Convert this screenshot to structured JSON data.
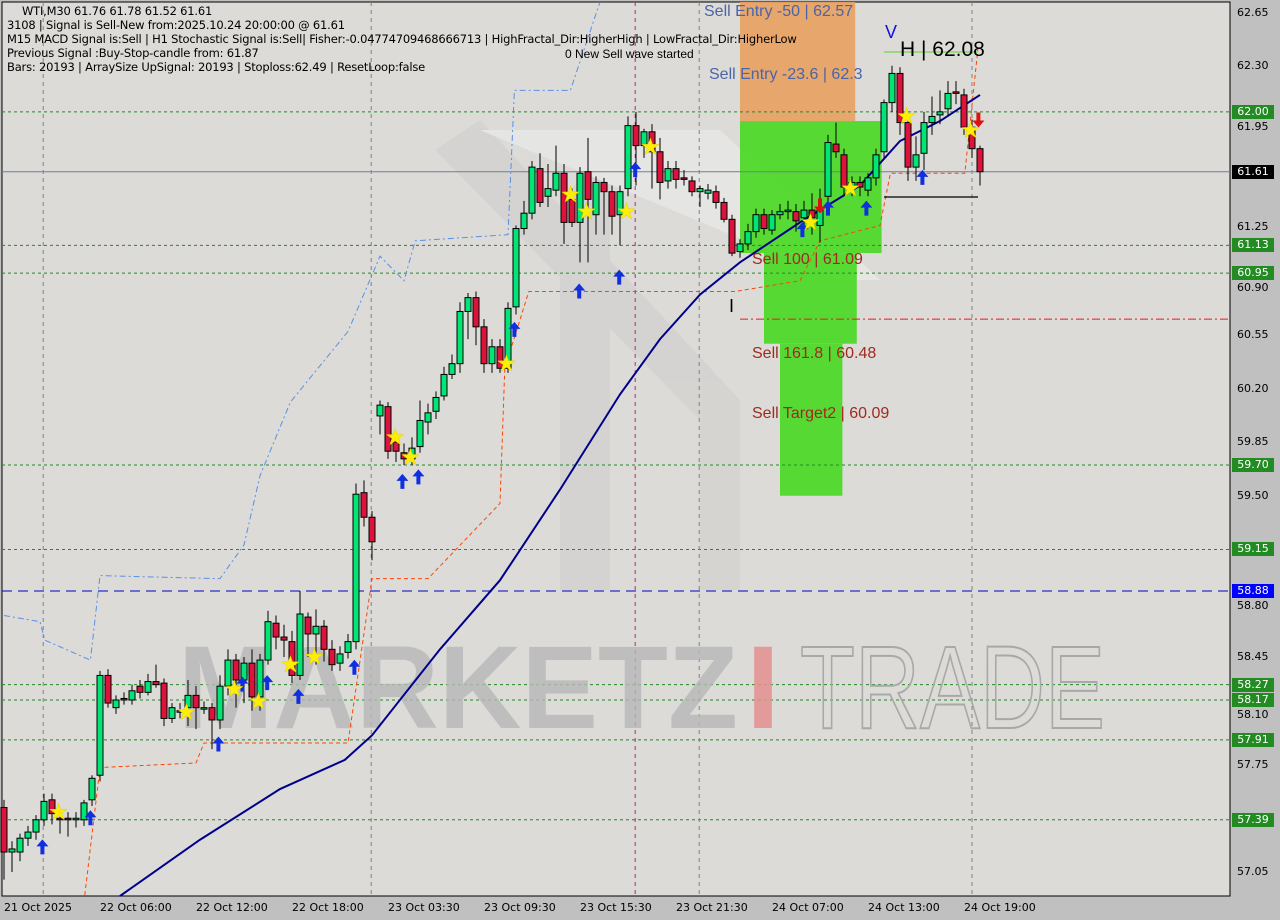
{
  "header": {
    "symbol_line": "WTI,M30  61.76 61.78 61.52 61.61",
    "signal_line": "3108 | Signal is Sell-New from:2025.10.24 20:00:00 @ 61.61",
    "macd_line": "M15 MACD Signal is:Sell | H1 Stochastic Signal is:Sell| Fisher:-0.04774709468666713 | HighFractal_Dir:HigherHigh | LowFractal_Dir:HigherLow",
    "previous_line": "Previous Signal :Buy-Stop-candle from: 61.87",
    "bars_line": "Bars: 20193 | ArraySize UpSignal: 20193 | Stoploss:62.49 | ResetLoop:false"
  },
  "annotations": {
    "wave": "0 New Sell wave started",
    "sell_entry_50": "Sell Entry -50 | 62.57",
    "sell_entry_236": "Sell Entry -23.6 | 62.3",
    "high": "H | 62.08",
    "v_mark": "V",
    "i_mark": "I",
    "sell_100": "Sell 100 | 61.09",
    "sell_1618": "Sell 161.8 | 60.48",
    "sell_target2": "Sell Target2 | 60.09"
  },
  "watermark": {
    "part1": "MARKETZ",
    "part2": "I",
    "part3": "TRADE"
  },
  "colors": {
    "background": "#d8d8d8",
    "bull": "#00e676",
    "bear": "#dc143c",
    "ma": "#00008b",
    "level_green": "#228b22",
    "current_price": "#000000",
    "blue_level": "#0000ff",
    "zone_orange": "#e8a060",
    "zone_green": "#4fd92a"
  },
  "price_axis": {
    "ticks": [
      "62.65",
      "62.30",
      "61.95",
      "61.25",
      "60.90",
      "60.55",
      "60.20",
      "59.85",
      "59.50",
      "58.80",
      "58.45",
      "58.10",
      "57.75",
      "57.05"
    ],
    "badges": [
      {
        "value": "62.00",
        "type": "green"
      },
      {
        "value": "61.61",
        "type": "current"
      },
      {
        "value": "61.13",
        "type": "green"
      },
      {
        "value": "60.95",
        "type": "green"
      },
      {
        "value": "59.70",
        "type": "green"
      },
      {
        "value": "59.15",
        "type": "green"
      },
      {
        "value": "58.88",
        "type": "blue"
      },
      {
        "value": "58.27",
        "type": "green"
      },
      {
        "value": "58.17",
        "type": "green"
      },
      {
        "value": "57.91",
        "type": "green"
      },
      {
        "value": "57.39",
        "type": "green"
      }
    ]
  },
  "time_axis": [
    "21 Oct 2025",
    "22 Oct 06:00",
    "22 Oct 12:00",
    "22 Oct 18:00",
    "23 Oct 03:30",
    "23 Oct 09:30",
    "23 Oct 15:30",
    "23 Oct 21:30",
    "24 Oct 07:00",
    "24 Oct 13:00",
    "24 Oct 19:00"
  ],
  "chart_data": {
    "type": "candlestick",
    "symbol": "WTI",
    "timeframe": "M30",
    "ylim": [
      56.9,
      62.72
    ],
    "candles": [
      [
        57.47,
        57.52,
        57.0,
        57.18
      ],
      [
        57.18,
        57.25,
        57.05,
        57.2
      ],
      [
        57.18,
        57.3,
        57.12,
        57.27
      ],
      [
        57.27,
        57.35,
        57.22,
        57.31
      ],
      [
        57.31,
        57.42,
        57.26,
        57.39
      ],
      [
        57.39,
        57.56,
        57.35,
        57.51
      ],
      [
        57.52,
        57.56,
        57.36,
        57.43
      ],
      [
        57.4,
        57.45,
        57.3,
        57.39
      ],
      [
        57.4,
        57.44,
        57.28,
        57.39
      ],
      [
        57.39,
        57.44,
        57.34,
        57.4
      ],
      [
        57.39,
        57.52,
        57.35,
        57.5
      ],
      [
        57.52,
        57.68,
        57.48,
        57.66
      ],
      [
        57.68,
        58.36,
        57.64,
        58.33
      ],
      [
        58.33,
        58.37,
        58.12,
        58.15
      ],
      [
        58.12,
        58.2,
        58.08,
        58.17
      ],
      [
        58.18,
        58.22,
        58.14,
        58.17
      ],
      [
        58.17,
        58.27,
        58.14,
        58.23
      ],
      [
        58.26,
        58.3,
        58.18,
        58.22
      ],
      [
        58.22,
        58.34,
        58.2,
        58.29
      ],
      [
        58.29,
        58.4,
        58.25,
        58.27
      ],
      [
        58.28,
        58.31,
        58.0,
        58.05
      ],
      [
        58.05,
        58.15,
        58.02,
        58.12
      ],
      [
        58.1,
        58.15,
        58.05,
        58.1
      ],
      [
        58.12,
        58.3,
        58.0,
        58.2
      ],
      [
        58.2,
        58.26,
        57.98,
        58.12
      ],
      [
        58.12,
        58.16,
        58.08,
        58.12
      ],
      [
        58.12,
        58.15,
        57.85,
        58.04
      ],
      [
        58.04,
        58.33,
        57.98,
        58.26
      ],
      [
        58.26,
        58.5,
        58.2,
        58.43
      ],
      [
        58.43,
        58.47,
        58.12,
        58.3
      ],
      [
        58.3,
        58.45,
        58.15,
        58.41
      ],
      [
        58.41,
        58.5,
        58.1,
        58.19
      ],
      [
        58.19,
        58.47,
        58.1,
        58.43
      ],
      [
        58.43,
        58.75,
        58.4,
        58.68
      ],
      [
        58.67,
        58.72,
        58.5,
        58.58
      ],
      [
        58.58,
        58.66,
        58.45,
        58.56
      ],
      [
        58.55,
        58.62,
        58.28,
        58.33
      ],
      [
        58.33,
        58.88,
        58.3,
        58.73
      ],
      [
        58.71,
        58.74,
        58.45,
        58.6
      ],
      [
        58.6,
        58.76,
        58.4,
        58.65
      ],
      [
        58.65,
        58.69,
        58.42,
        58.5
      ],
      [
        58.5,
        58.56,
        58.36,
        58.4
      ],
      [
        58.41,
        58.52,
        58.36,
        58.47
      ],
      [
        58.48,
        58.6,
        58.44,
        58.55
      ],
      [
        58.55,
        59.58,
        58.5,
        59.51
      ],
      [
        59.52,
        59.6,
        59.3,
        59.36
      ],
      [
        59.36,
        59.4,
        59.08,
        59.2
      ],
      [
        60.02,
        60.12,
        59.9,
        60.09
      ],
      [
        60.08,
        60.11,
        59.74,
        59.79
      ],
      [
        59.85,
        59.9,
        59.72,
        59.79
      ],
      [
        59.78,
        59.84,
        59.7,
        59.74
      ],
      [
        59.74,
        59.88,
        59.7,
        59.81
      ],
      [
        59.82,
        60.12,
        59.78,
        59.99
      ],
      [
        59.98,
        60.1,
        59.9,
        60.04
      ],
      [
        60.05,
        60.18,
        60.0,
        60.14
      ],
      [
        60.15,
        60.34,
        60.12,
        60.29
      ],
      [
        60.29,
        60.42,
        60.26,
        60.36
      ],
      [
        60.36,
        60.76,
        60.3,
        60.7
      ],
      [
        60.7,
        60.82,
        60.52,
        60.79
      ],
      [
        60.79,
        60.83,
        60.48,
        60.6
      ],
      [
        60.6,
        60.65,
        60.3,
        60.36
      ],
      [
        60.36,
        60.52,
        60.3,
        60.47
      ],
      [
        60.47,
        60.52,
        60.3,
        60.33
      ],
      [
        60.33,
        60.76,
        60.3,
        60.72
      ],
      [
        60.73,
        61.26,
        60.68,
        61.24
      ],
      [
        61.24,
        61.42,
        61.2,
        61.34
      ],
      [
        61.34,
        61.68,
        61.3,
        61.64
      ],
      [
        61.63,
        61.73,
        61.38,
        61.41
      ],
      [
        61.45,
        61.66,
        61.38,
        61.5
      ],
      [
        61.49,
        61.78,
        61.45,
        61.6
      ],
      [
        61.6,
        61.66,
        61.14,
        61.28
      ],
      [
        61.43,
        61.5,
        61.25,
        61.28
      ],
      [
        61.28,
        61.64,
        61.02,
        61.6
      ],
      [
        61.61,
        61.83,
        61.02,
        61.43
      ],
      [
        61.33,
        61.58,
        61.2,
        61.54
      ],
      [
        61.54,
        61.57,
        61.2,
        61.48
      ],
      [
        61.48,
        61.52,
        61.2,
        61.32
      ],
      [
        61.33,
        61.52,
        61.13,
        61.48
      ],
      [
        61.5,
        61.97,
        61.45,
        61.91
      ],
      [
        61.91,
        62.0,
        61.52,
        61.78
      ],
      [
        61.78,
        61.89,
        61.7,
        61.87
      ],
      [
        61.87,
        61.92,
        61.5,
        61.74
      ],
      [
        61.74,
        61.83,
        61.43,
        61.54
      ],
      [
        61.55,
        61.68,
        61.5,
        61.63
      ],
      [
        61.63,
        61.68,
        61.5,
        61.56
      ],
      [
        61.57,
        61.62,
        61.52,
        61.56
      ],
      [
        61.55,
        61.58,
        61.45,
        61.48
      ],
      [
        61.48,
        61.52,
        61.38,
        61.5
      ],
      [
        61.47,
        61.53,
        61.43,
        61.49
      ],
      [
        61.48,
        61.52,
        61.37,
        61.41
      ],
      [
        61.41,
        61.44,
        61.28,
        61.3
      ],
      [
        61.3,
        61.33,
        61.06,
        61.08
      ],
      [
        61.09,
        61.17,
        61.05,
        61.14
      ],
      [
        61.14,
        61.27,
        61.1,
        61.22
      ],
      [
        61.22,
        61.37,
        61.18,
        61.33
      ],
      [
        61.33,
        61.37,
        61.2,
        61.24
      ],
      [
        61.23,
        61.36,
        61.2,
        61.33
      ],
      [
        61.33,
        61.4,
        61.3,
        61.35
      ],
      [
        61.35,
        61.42,
        61.3,
        61.36
      ],
      [
        61.35,
        61.4,
        61.22,
        61.29
      ],
      [
        61.31,
        61.42,
        61.24,
        61.36
      ],
      [
        61.36,
        61.47,
        61.2,
        61.31
      ],
      [
        61.26,
        61.5,
        61.15,
        61.36
      ],
      [
        61.45,
        61.85,
        61.4,
        61.8
      ],
      [
        61.79,
        61.93,
        61.7,
        61.74
      ],
      [
        61.72,
        61.76,
        61.45,
        61.51
      ],
      [
        61.51,
        61.58,
        61.45,
        61.54
      ],
      [
        61.54,
        61.58,
        61.45,
        61.51
      ],
      [
        61.49,
        61.6,
        61.45,
        61.57
      ],
      [
        61.57,
        61.76,
        61.52,
        61.72
      ],
      [
        61.74,
        62.08,
        61.7,
        62.06
      ],
      [
        62.06,
        62.3,
        62.0,
        62.25
      ],
      [
        62.25,
        62.29,
        61.85,
        61.93
      ],
      [
        61.93,
        61.97,
        61.55,
        61.64
      ],
      [
        61.64,
        61.84,
        61.55,
        61.72
      ],
      [
        61.73,
        62.0,
        61.62,
        61.93
      ],
      [
        61.93,
        62.1,
        61.85,
        61.97
      ],
      [
        61.98,
        62.14,
        61.92,
        62.0
      ],
      [
        62.02,
        62.2,
        61.98,
        62.12
      ],
      [
        62.13,
        62.2,
        62.05,
        62.12
      ],
      [
        62.11,
        62.15,
        61.85,
        61.9
      ],
      [
        61.9,
        61.95,
        61.7,
        61.76
      ],
      [
        61.76,
        61.78,
        61.52,
        61.61
      ]
    ],
    "moving_average": [
      [
        14.5,
        56.89
      ],
      [
        24.5,
        57.26
      ],
      [
        34.5,
        57.59
      ],
      [
        42.6,
        57.78
      ],
      [
        46,
        57.94
      ],
      [
        54.5,
        58.5
      ],
      [
        62,
        58.95
      ],
      [
        69.5,
        59.54
      ],
      [
        77,
        60.16
      ],
      [
        82,
        60.52
      ],
      [
        87,
        60.81
      ],
      [
        92,
        61.02
      ],
      [
        99.5,
        61.28
      ],
      [
        107,
        61.52
      ],
      [
        112,
        61.81
      ],
      [
        117,
        61.94
      ],
      [
        122,
        62.11
      ]
    ],
    "stop_line": [
      [
        10.1,
        56.9
      ],
      [
        12,
        57.73
      ],
      [
        24,
        57.76
      ],
      [
        25,
        57.89
      ],
      [
        43,
        57.89
      ],
      [
        46,
        58.96
      ],
      [
        53,
        58.96
      ],
      [
        62,
        59.45
      ],
      [
        62.6,
        60.33
      ],
      [
        65.6,
        60.83
      ],
      [
        91.4,
        60.83
      ],
      [
        99.5,
        60.9
      ],
      [
        102,
        61.16
      ],
      [
        109.5,
        61.26
      ],
      [
        110.8,
        61.6
      ],
      [
        120.1,
        61.6
      ],
      [
        121.8,
        62.44
      ]
    ],
    "upper_band": [
      [
        0,
        58.72
      ],
      [
        4.5,
        58.68
      ],
      [
        5.1,
        58.56
      ],
      [
        10.8,
        58.43
      ],
      [
        12,
        58.98
      ],
      [
        27,
        58.96
      ],
      [
        30,
        59.18
      ],
      [
        32,
        59.63
      ],
      [
        35.8,
        60.11
      ],
      [
        43,
        60.57
      ],
      [
        47,
        61.06
      ],
      [
        50,
        60.9
      ],
      [
        51.4,
        61.16
      ],
      [
        63,
        61.2
      ],
      [
        63.8,
        62.14
      ],
      [
        70.8,
        62.14
      ],
      [
        74.5,
        62.72
      ]
    ],
    "levels": [
      {
        "price": 62.0,
        "style": "green-dashed"
      },
      {
        "price": 61.13,
        "style": "green-dashed"
      },
      {
        "price": 60.95,
        "style": "green-dashed"
      },
      {
        "price": 59.7,
        "style": "green-dashed"
      },
      {
        "price": 59.15,
        "style": "green-dashed"
      },
      {
        "price": 58.27,
        "style": "green-dashed"
      },
      {
        "price": 58.17,
        "style": "green-dashed"
      },
      {
        "price": 57.91,
        "style": "green-dashed"
      },
      {
        "price": 57.39,
        "style": "green-dashed"
      },
      {
        "price": 58.88,
        "style": "blue-dashed"
      },
      {
        "price": 61.61,
        "style": "current"
      },
      {
        "price": 60.65,
        "style": "red-dashdot",
        "from": 92
      }
    ],
    "zones": [
      {
        "from": 92,
        "to": 106.4,
        "top": 62.72,
        "bottom": 61.94,
        "color": "orange"
      },
      {
        "from": 92,
        "to": 109.7,
        "top": 61.94,
        "bottom": 61.08,
        "color": "green"
      },
      {
        "from": 95,
        "to": 106.6,
        "top": 61.08,
        "bottom": 60.49,
        "color": "green"
      },
      {
        "from": 97,
        "to": 104.8,
        "top": 60.49,
        "bottom": 59.5,
        "color": "green"
      }
    ],
    "buy_arrows": [
      [
        4.8,
        57.21
      ],
      [
        10.8,
        57.4
      ],
      [
        26.8,
        57.88
      ],
      [
        29.8,
        58.27
      ],
      [
        32.9,
        58.28
      ],
      [
        36.8,
        58.19
      ],
      [
        43.8,
        58.38
      ],
      [
        49.8,
        59.59
      ],
      [
        51.8,
        59.62
      ],
      [
        63.8,
        60.58
      ],
      [
        71.9,
        60.83
      ],
      [
        76.9,
        60.92
      ],
      [
        78.9,
        61.62
      ],
      [
        99.8,
        61.23
      ],
      [
        103,
        61.37
      ],
      [
        107.8,
        61.37
      ],
      [
        114.8,
        61.57
      ]
    ],
    "stars": [
      [
        6.8,
        57.44
      ],
      [
        22.8,
        58.09
      ],
      [
        28.8,
        58.24
      ],
      [
        31.8,
        58.16
      ],
      [
        35.8,
        58.4
      ],
      [
        38.8,
        58.45
      ],
      [
        48.9,
        59.88
      ],
      [
        50.8,
        59.75
      ],
      [
        62.8,
        60.36
      ],
      [
        70.8,
        61.46
      ],
      [
        72.8,
        61.35
      ],
      [
        77.8,
        61.35
      ],
      [
        80.8,
        61.77
      ],
      [
        100.8,
        61.28
      ],
      [
        105.8,
        61.5
      ],
      [
        112.8,
        61.97
      ],
      [
        120.8,
        61.88
      ]
    ],
    "sell_arrows": [
      [
        102,
        61.39
      ],
      [
        121.8,
        61.95
      ]
    ]
  }
}
